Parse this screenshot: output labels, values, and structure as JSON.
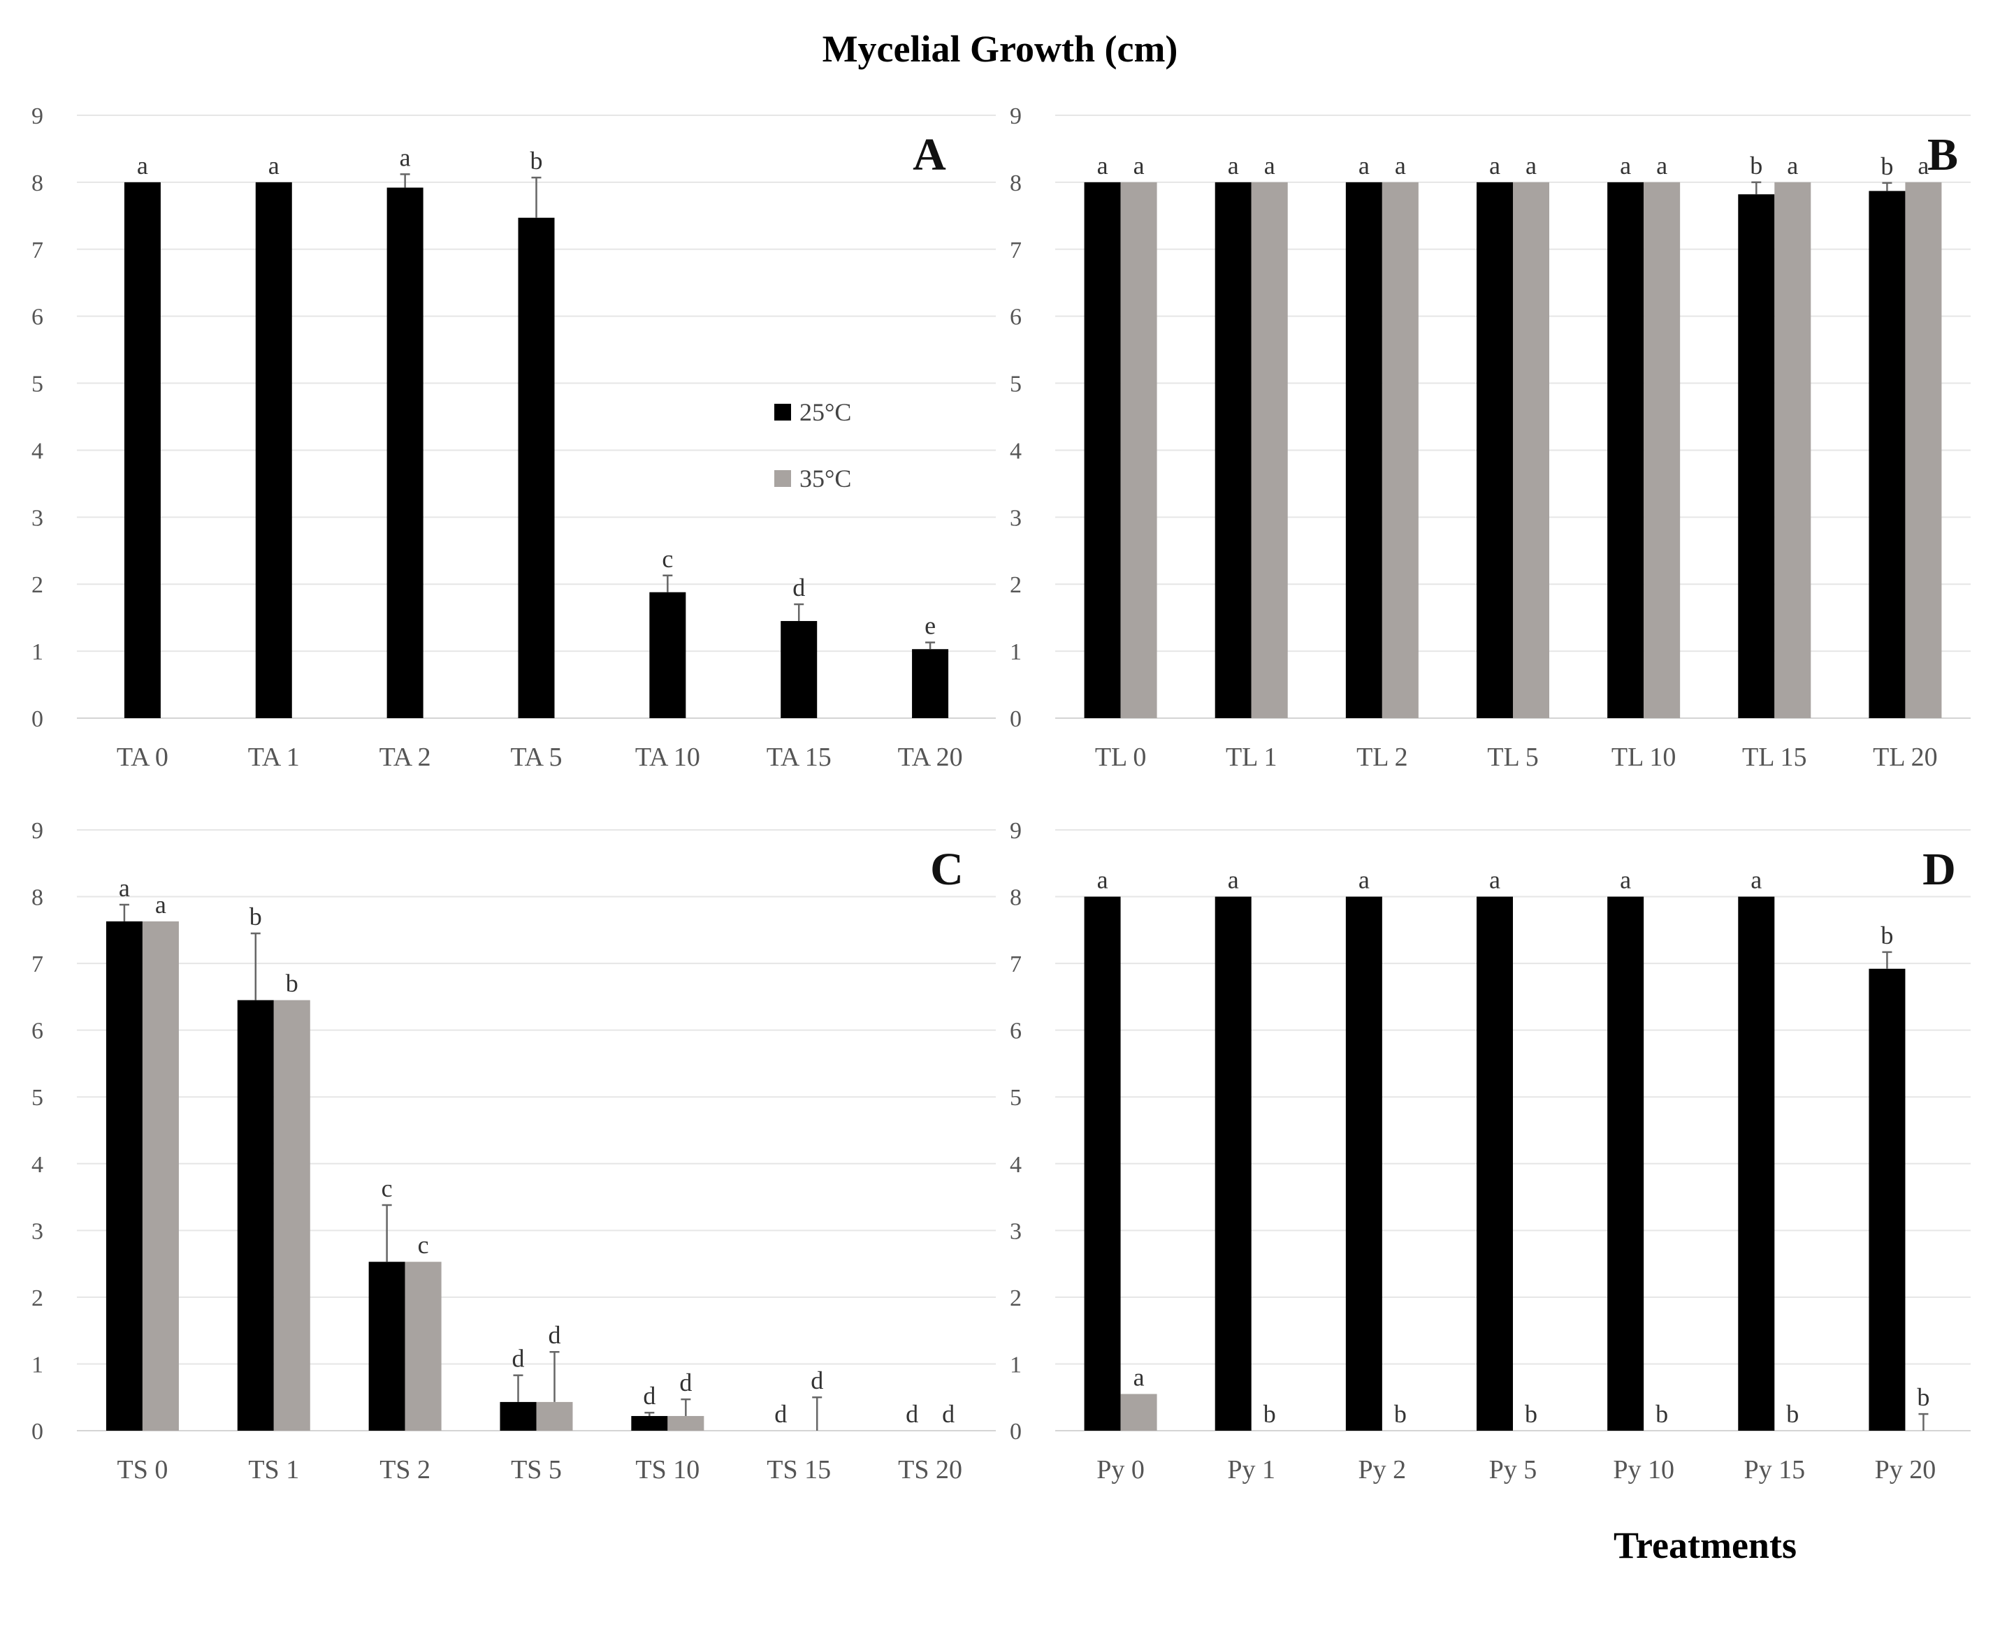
{
  "figure": {
    "title": "Mycelial Growth (cm)",
    "x_axis_title": "Treatments",
    "colors": {
      "t25": "#000000",
      "t35": "#a8a3a0"
    }
  },
  "chart_data": [
    {
      "type": "bar",
      "panel": "A",
      "title": "",
      "xlabel": "",
      "ylabel": "",
      "ylim": [
        0,
        9
      ],
      "yticks": [
        0,
        1,
        2,
        3,
        4,
        5,
        6,
        7,
        8,
        9
      ],
      "grid": true,
      "legend": {
        "placement": "center-right",
        "entries": [
          "25°C",
          "35°C"
        ]
      },
      "categories": [
        "TA 0",
        "TA 1",
        "TA 2",
        "TA 5",
        "TA 10",
        "TA 15",
        "TA 20"
      ],
      "series": [
        {
          "name": "25°C",
          "values": [
            8.0,
            8.0,
            7.92,
            7.47,
            1.88,
            1.45,
            1.03
          ],
          "errors": [
            0.0,
            0.0,
            0.2,
            0.6,
            0.25,
            0.25,
            0.1
          ],
          "letters": [
            "a",
            "a",
            "a",
            "b",
            "c",
            "d",
            "e"
          ]
        }
      ]
    },
    {
      "type": "bar",
      "panel": "B",
      "title": "",
      "xlabel": "",
      "ylabel": "",
      "ylim": [
        0,
        9
      ],
      "yticks": [
        0,
        1,
        2,
        3,
        4,
        5,
        6,
        7,
        8,
        9
      ],
      "grid": true,
      "categories": [
        "TL 0",
        "TL 1",
        "TL 2",
        "TL 5",
        "TL 10",
        "TL 15",
        "TL 20"
      ],
      "series": [
        {
          "name": "25°C",
          "values": [
            8.0,
            8.0,
            8.0,
            8.0,
            8.0,
            7.82,
            7.87
          ],
          "errors": [
            0,
            0,
            0,
            0,
            0,
            0.18,
            0.12
          ],
          "letters": [
            "a",
            "a",
            "a",
            "a",
            "a",
            "b",
            "b"
          ]
        },
        {
          "name": "35°C",
          "values": [
            8.0,
            8.0,
            8.0,
            8.0,
            8.0,
            8.0,
            8.0
          ],
          "errors": [
            0,
            0,
            0,
            0,
            0,
            0,
            0
          ],
          "letters": [
            "a",
            "a",
            "a",
            "a",
            "a",
            "a",
            "a"
          ]
        }
      ]
    },
    {
      "type": "bar",
      "panel": "C",
      "title": "",
      "xlabel": "",
      "ylabel": "",
      "ylim": [
        0,
        9
      ],
      "yticks": [
        0,
        1,
        2,
        3,
        4,
        5,
        6,
        7,
        8,
        9
      ],
      "grid": true,
      "categories": [
        "TS 0",
        "TS 1",
        "TS 2",
        "TS 5",
        "TS 10",
        "TS 15",
        "TS 20"
      ],
      "series": [
        {
          "name": "25°C",
          "values": [
            7.63,
            6.45,
            2.53,
            0.43,
            0.22,
            0.0,
            0.0
          ],
          "errors": [
            0.25,
            1.0,
            0.85,
            0.4,
            0.05,
            0.0,
            0.0
          ],
          "letters": [
            "a",
            "b",
            "c",
            "d",
            "d",
            "d",
            "d"
          ]
        },
        {
          "name": "35°C",
          "values": [
            7.63,
            6.45,
            2.53,
            0.43,
            0.22,
            0.0,
            0.0
          ],
          "errors": [
            0.0,
            0.0,
            0.0,
            0.75,
            0.25,
            0.5,
            0.0
          ],
          "letters": [
            "a",
            "b",
            "c",
            "d",
            "d",
            "d",
            "d"
          ]
        }
      ]
    },
    {
      "type": "bar",
      "panel": "D",
      "title": "",
      "xlabel": "",
      "ylabel": "",
      "ylim": [
        0,
        9
      ],
      "yticks": [
        0,
        1,
        2,
        3,
        4,
        5,
        6,
        7,
        8,
        9
      ],
      "grid": true,
      "categories": [
        "Py 0",
        "Py 1",
        "Py 2",
        "Py 5",
        "Py 10",
        "Py 15",
        "Py 20"
      ],
      "series": [
        {
          "name": "25°C",
          "values": [
            8.0,
            8.0,
            8.0,
            8.0,
            8.0,
            8.0,
            6.92
          ],
          "errors": [
            0,
            0,
            0,
            0,
            0,
            0,
            0.25
          ],
          "letters": [
            "a",
            "a",
            "a",
            "a",
            "a",
            "a",
            "b"
          ]
        },
        {
          "name": "35°C",
          "values": [
            0.55,
            0.0,
            0.0,
            0.0,
            0.0,
            0.0,
            0.0
          ],
          "errors": [
            0,
            0,
            0,
            0,
            0,
            0,
            0.25
          ],
          "letters": [
            "a",
            "b",
            "b",
            "b",
            "b",
            "b",
            "b"
          ]
        }
      ]
    }
  ]
}
